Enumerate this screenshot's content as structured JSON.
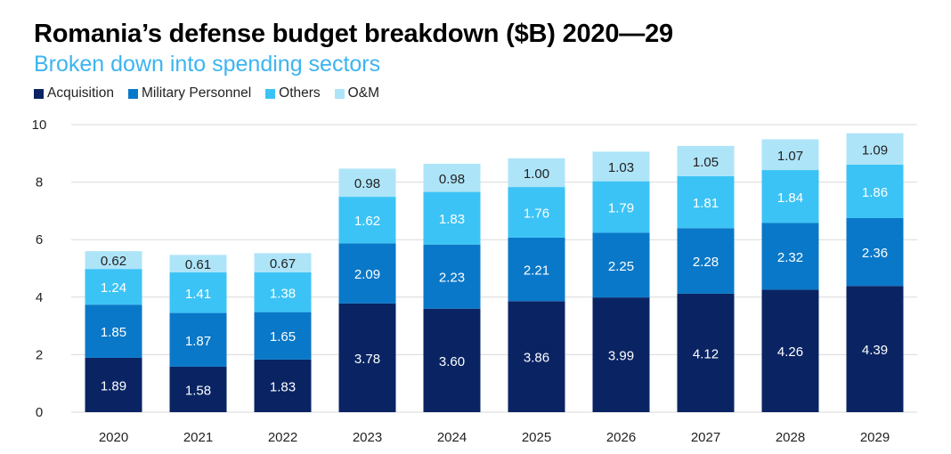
{
  "colors": {
    "title": "#000000",
    "subtitle": "#3cb4f0",
    "acquisition": "#0a2463",
    "military_personnel": "#0a78c8",
    "others": "#3cc3f5",
    "om": "#aee4f8",
    "gridline": "#d9d9d9"
  },
  "chart_data": {
    "type": "bar",
    "stacked": true,
    "title": "Romania’s defense budget breakdown ($B) 2020—29",
    "subtitle": "Broken down into spending sectors",
    "xlabel": "",
    "ylabel": "",
    "ylim": [
      0,
      10
    ],
    "yticks": [
      "0",
      "2",
      "4",
      "6",
      "8",
      "10"
    ],
    "grid": true,
    "legend_position": "top-left",
    "categories": [
      "2020",
      "2021",
      "2022",
      "2023",
      "2024",
      "2025",
      "2026",
      "2027",
      "2028",
      "2029"
    ],
    "series": [
      {
        "name": "Acquisition",
        "values": [
          1.89,
          1.58,
          1.83,
          3.78,
          3.6,
          3.86,
          3.99,
          4.12,
          4.26,
          4.39
        ],
        "labels": [
          "1.89",
          "1.58",
          "1.83",
          "3.78",
          "3.60",
          "3.86",
          "3.99",
          "4.12",
          "4.26",
          "4.39"
        ]
      },
      {
        "name": "Military Personnel",
        "values": [
          1.85,
          1.87,
          1.65,
          2.09,
          2.23,
          2.21,
          2.25,
          2.28,
          2.32,
          2.36
        ],
        "labels": [
          "1.85",
          "1.87",
          "1.65",
          "2.09",
          "2.23",
          "2.21",
          "2.25",
          "2.28",
          "2.32",
          "2.36"
        ]
      },
      {
        "name": "Others",
        "values": [
          1.24,
          1.41,
          1.38,
          1.62,
          1.83,
          1.76,
          1.79,
          1.81,
          1.84,
          1.86
        ],
        "labels": [
          "1.24",
          "1.41",
          "1.38",
          "1.62",
          "1.83",
          "1.76",
          "1.79",
          "1.81",
          "1.84",
          "1.86"
        ]
      },
      {
        "name": "O&M",
        "values": [
          0.62,
          0.61,
          0.67,
          0.98,
          0.98,
          1.0,
          1.03,
          1.05,
          1.07,
          1.09
        ],
        "labels": [
          "0.62",
          "0.61",
          "0.67",
          "0.98",
          "0.98",
          "1.00",
          "1.03",
          "1.05",
          "1.07",
          "1.09"
        ]
      }
    ]
  }
}
